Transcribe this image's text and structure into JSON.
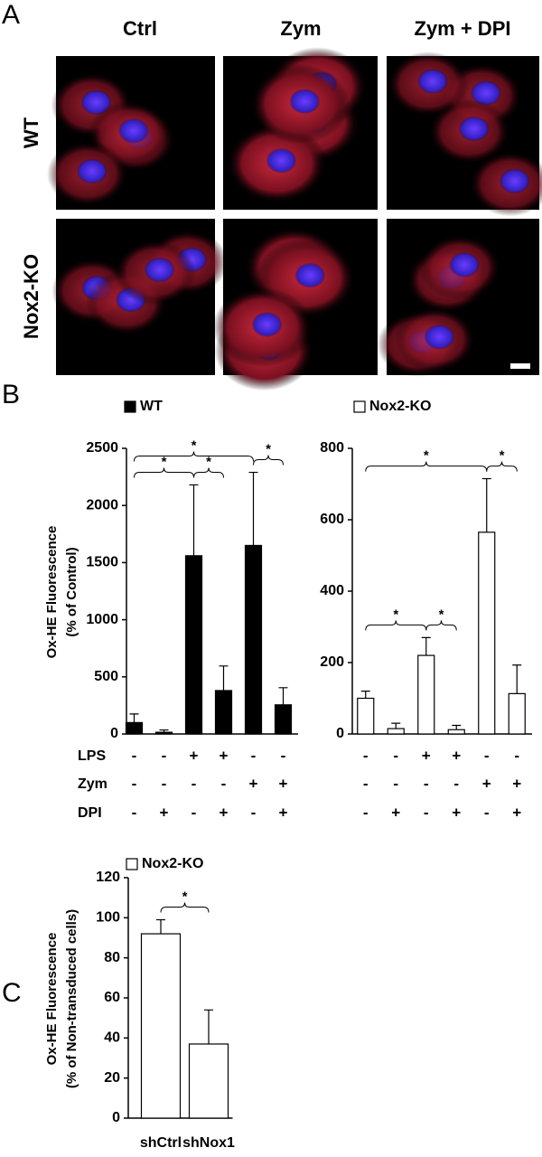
{
  "panel_labels": [
    "A",
    "B",
    "C"
  ],
  "micrographs": {
    "columns": [
      "Ctrl",
      "Zym",
      "Zym + DPI"
    ],
    "rows": [
      "WT",
      "Nox2-KO"
    ]
  },
  "chart_data": [
    {
      "type": "bar",
      "ylabel": [
        "Ox-HE Fluorescence",
        "(% of Control)"
      ],
      "series": [
        {
          "name": "WT",
          "color": "#000000",
          "values": [
            100,
            15,
            1560,
            380,
            1650,
            255
          ],
          "errors": [
            75,
            20,
            620,
            215,
            640,
            150
          ]
        }
      ],
      "ylim": [
        0,
        2500
      ],
      "yticks": [
        0,
        500,
        1000,
        1500,
        2000,
        2500
      ],
      "conditions": [
        {
          "name": "LPS",
          "values": [
            "-",
            "-",
            "+",
            "+",
            "-",
            "-"
          ]
        },
        {
          "name": "Zym",
          "values": [
            "-",
            "-",
            "-",
            "-",
            "+",
            "+"
          ]
        },
        {
          "name": "DPI",
          "values": [
            "-",
            "+",
            "-",
            "+",
            "-",
            "+"
          ]
        }
      ],
      "comparisons": [
        {
          "pair": [
            0,
            2
          ],
          "label": "*"
        },
        {
          "pair": [
            2,
            3
          ],
          "label": "*"
        },
        {
          "pair": [
            4,
            5
          ],
          "label": "*"
        },
        {
          "pair": [
            0,
            4
          ],
          "label": "*"
        }
      ]
    },
    {
      "type": "bar",
      "series": [
        {
          "name": "Nox2-KO",
          "color": "#ffffff",
          "values": [
            100,
            15,
            220,
            12,
            565,
            113
          ],
          "errors": [
            20,
            15,
            50,
            12,
            150,
            80
          ]
        }
      ],
      "ylim": [
        0,
        800
      ],
      "yticks": [
        0,
        200,
        400,
        600,
        800
      ],
      "conditions": [
        {
          "values": [
            "-",
            "-",
            "+",
            "+",
            "-",
            "-"
          ]
        },
        {
          "values": [
            "-",
            "-",
            "-",
            "-",
            "+",
            "+"
          ]
        },
        {
          "values": [
            "-",
            "+",
            "-",
            "+",
            "-",
            "+"
          ]
        }
      ],
      "comparisons": [
        {
          "pair": [
            0,
            2
          ],
          "label": "*"
        },
        {
          "pair": [
            2,
            3
          ],
          "label": "*"
        },
        {
          "pair": [
            4,
            5
          ],
          "label": "*"
        },
        {
          "pair": [
            0,
            4
          ],
          "label": "*"
        }
      ]
    },
    {
      "type": "bar",
      "ylabel": [
        "Ox-HE Fluorescence",
        "(% of Non-transduced cells)"
      ],
      "categories": [
        "shCtrl",
        "shNox1"
      ],
      "series": [
        {
          "name": "Nox2-KO",
          "color": "#ffffff",
          "values": [
            92,
            37
          ],
          "errors": [
            7,
            17
          ]
        }
      ],
      "ylim": [
        0,
        120
      ],
      "yticks": [
        0,
        20,
        40,
        60,
        80,
        100,
        120
      ],
      "comparisons": [
        {
          "pair": [
            0,
            1
          ],
          "label": "*"
        }
      ]
    }
  ]
}
